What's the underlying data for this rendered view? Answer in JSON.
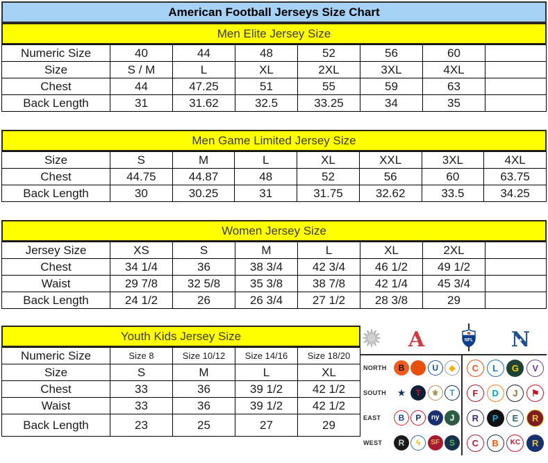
{
  "title": "American Football Jerseys Size Chart",
  "colors": {
    "title_bg": "#a5d2f5",
    "band_bg": "#ffff00",
    "border": "#000000",
    "afc_red": "#cf3a40",
    "nfc_blue": "#1f4f8f"
  },
  "tables": [
    {
      "title": "Men Elite Jersey Size",
      "rows": [
        [
          "Numeric Size",
          "40",
          "44",
          "48",
          "52",
          "56",
          "60",
          ""
        ],
        [
          "Size",
          "S / M",
          "L",
          "XL",
          "2XL",
          "3XL",
          "4XL",
          ""
        ],
        [
          "Chest",
          "44",
          "47.25",
          "51",
          "55",
          "59",
          "63",
          ""
        ],
        [
          "Back Length",
          "31",
          "31.62",
          "32.5",
          "33.25",
          "34",
          "35",
          ""
        ]
      ]
    },
    {
      "title": "Men Game Limited Jersey Size",
      "rows": [
        [
          "Size",
          "S",
          "M",
          "L",
          "XL",
          "XXL",
          "3XL",
          "4XL"
        ],
        [
          "Chest",
          "44.75",
          "44.87",
          "48",
          "52",
          "56",
          "60",
          "63.75"
        ],
        [
          "Back Length",
          "30",
          "30.25",
          "31",
          "31.75",
          "32.62",
          "33.5",
          "34.25"
        ]
      ]
    },
    {
      "title": "Women Jersey Size",
      "rows": [
        [
          "Jersey Size",
          "XS",
          "S",
          "M",
          "L",
          "XL",
          "2XL",
          ""
        ],
        [
          "Chest",
          "34 1/4",
          "36",
          "38 3/4",
          "42 3/4",
          "46 1/2",
          "49 1/2",
          ""
        ],
        [
          "Waist",
          "29 7/8",
          "32 5/8",
          "35 3/8",
          "38 7/8",
          "42 1/4",
          "45 3/4",
          ""
        ],
        [
          "Back Length",
          "24 1/2",
          "26",
          "26 3/4",
          "27 1/2",
          "28 3/8",
          "29",
          ""
        ]
      ]
    },
    {
      "title": "Youth Kids Jersey Size",
      "rows": [
        [
          "Numeric Size",
          "Size 8",
          "Size 10/12",
          "Size 14/16",
          "Size 18/20"
        ],
        [
          "Size",
          "S",
          "M",
          "L",
          "XL"
        ],
        [
          "Chest",
          "33",
          "36",
          "39 1/2",
          "42 1/2"
        ],
        [
          "Waist",
          "33",
          "36",
          "39 1/2",
          "42 1/2"
        ],
        [
          "Back Length",
          "23",
          "25",
          "27",
          "29"
        ]
      ]
    }
  ],
  "nfl_panel": {
    "afc_letter": "A",
    "nfc_letter": "N",
    "shield_label": "NFL",
    "star_glyph": "★",
    "divisions": [
      {
        "label": "NORTH",
        "afc": [
          {
            "team": "Bengals",
            "glyph": "B",
            "bg": "#f35b20",
            "fg": "#111111"
          },
          {
            "team": "Browns",
            "glyph": "",
            "bg": "#e8500e",
            "fg": "#ffffff"
          },
          {
            "team": "Colts",
            "glyph": "U",
            "bg": "#ffffff",
            "fg": "#1b4e9e",
            "bd": "#1b4e9e"
          },
          {
            "team": "Steelers",
            "glyph": "◆",
            "bg": "#fdfdfd",
            "fg": "#f2b705",
            "bd": "#9a9a9a"
          }
        ],
        "nfc": [
          {
            "team": "Bears",
            "glyph": "C",
            "bg": "#ffffff",
            "fg": "#d45a17",
            "bd": "#d45a17"
          },
          {
            "team": "Lions",
            "glyph": "L",
            "bg": "#ffffff",
            "fg": "#1b72c0",
            "bd": "#1b72c0"
          },
          {
            "team": "Packers",
            "glyph": "G",
            "bg": "#1e4233",
            "fg": "#f7d117"
          },
          {
            "team": "Vikings",
            "glyph": "V",
            "bg": "#ffffff",
            "fg": "#6b3fa0",
            "bd": "#6b3fa0"
          }
        ]
      },
      {
        "label": "SOUTH",
        "afc": [
          {
            "team": "Cowboys",
            "glyph": "★",
            "bg": "#ffffff",
            "fg": "#16315e"
          },
          {
            "team": "Texans",
            "glyph": "T",
            "bg": "#0d2136",
            "fg": "#c8102e"
          },
          {
            "team": "Saints",
            "glyph": "⚜",
            "bg": "#ffffff",
            "fg": "#a8925a",
            "bd": "#a8925a"
          },
          {
            "team": "Titans",
            "glyph": "T",
            "bg": "#ffffff",
            "fg": "#3f8ede",
            "bd": "#0c2340"
          }
        ],
        "nfc": [
          {
            "team": "Falcons",
            "glyph": "F",
            "bg": "#ffffff",
            "fg": "#a71930",
            "bd": "#a71930"
          },
          {
            "team": "Dolphins",
            "glyph": "D",
            "bg": "#ffffff",
            "fg": "#00a5b8",
            "bd": "#f58220"
          },
          {
            "team": "Jaguars",
            "glyph": "J",
            "bg": "#ffffff",
            "fg": "#8a7326",
            "bd": "#222222"
          },
          {
            "team": "Buccaneers",
            "glyph": "⚑",
            "bg": "#ffffff",
            "fg": "#c21423",
            "bd": "#c21423"
          }
        ]
      },
      {
        "label": "EAST",
        "afc": [
          {
            "team": "Bills",
            "glyph": "B",
            "bg": "#ffffff",
            "fg": "#1f4398",
            "bd": "#d62028"
          },
          {
            "team": "Patriots",
            "glyph": "P",
            "bg": "#ffffff",
            "fg": "#16305e",
            "bd": "#c8102e"
          },
          {
            "team": "Giants",
            "glyph": "ny",
            "bg": "#1b2f6e",
            "fg": "#ffffff"
          },
          {
            "team": "Jets",
            "glyph": "J",
            "bg": "#2c5c41",
            "fg": "#ffffff"
          }
        ],
        "nfc": [
          {
            "team": "Ravens",
            "glyph": "R",
            "bg": "#ffffff",
            "fg": "#3a2a74",
            "bd": "#3a2a74"
          },
          {
            "team": "Panthers",
            "glyph": "P",
            "bg": "#111111",
            "fg": "#29a3d3"
          },
          {
            "team": "Eagles",
            "glyph": "E",
            "bg": "#ffffff",
            "fg": "#2f5e62",
            "bd": "#2f5e62"
          },
          {
            "team": "Redskins",
            "glyph": "R",
            "bg": "#7c1f24",
            "fg": "#f2c12e",
            "bd": "#f2c12e"
          }
        ]
      },
      {
        "label": "WEST",
        "afc": [
          {
            "team": "Raiders",
            "glyph": "R",
            "bg": "#1a1a1a",
            "fg": "#cfcfcf"
          },
          {
            "team": "Chargers",
            "glyph": "ϟ",
            "bg": "#ffffff",
            "fg": "#f2b705",
            "bd": "#2a69ac"
          },
          {
            "team": "49ers",
            "glyph": "SF",
            "bg": "#a6192e",
            "fg": "#d9b36a"
          },
          {
            "team": "Seahawks",
            "glyph": "S",
            "bg": "#17304e",
            "fg": "#55b948"
          }
        ],
        "nfc": [
          {
            "team": "Cardinals",
            "glyph": "C",
            "bg": "#ffffff",
            "fg": "#a32035",
            "bd": "#a32035"
          },
          {
            "team": "Broncos",
            "glyph": "B",
            "bg": "#ffffff",
            "fg": "#e8590c",
            "bd": "#17304e"
          },
          {
            "team": "Chiefs",
            "glyph": "KC",
            "bg": "#ffffff",
            "fg": "#c8102e",
            "bd": "#c8102e"
          },
          {
            "team": "Rams",
            "glyph": "R",
            "bg": "#17316e",
            "fg": "#e7c14c"
          }
        ]
      }
    ]
  }
}
